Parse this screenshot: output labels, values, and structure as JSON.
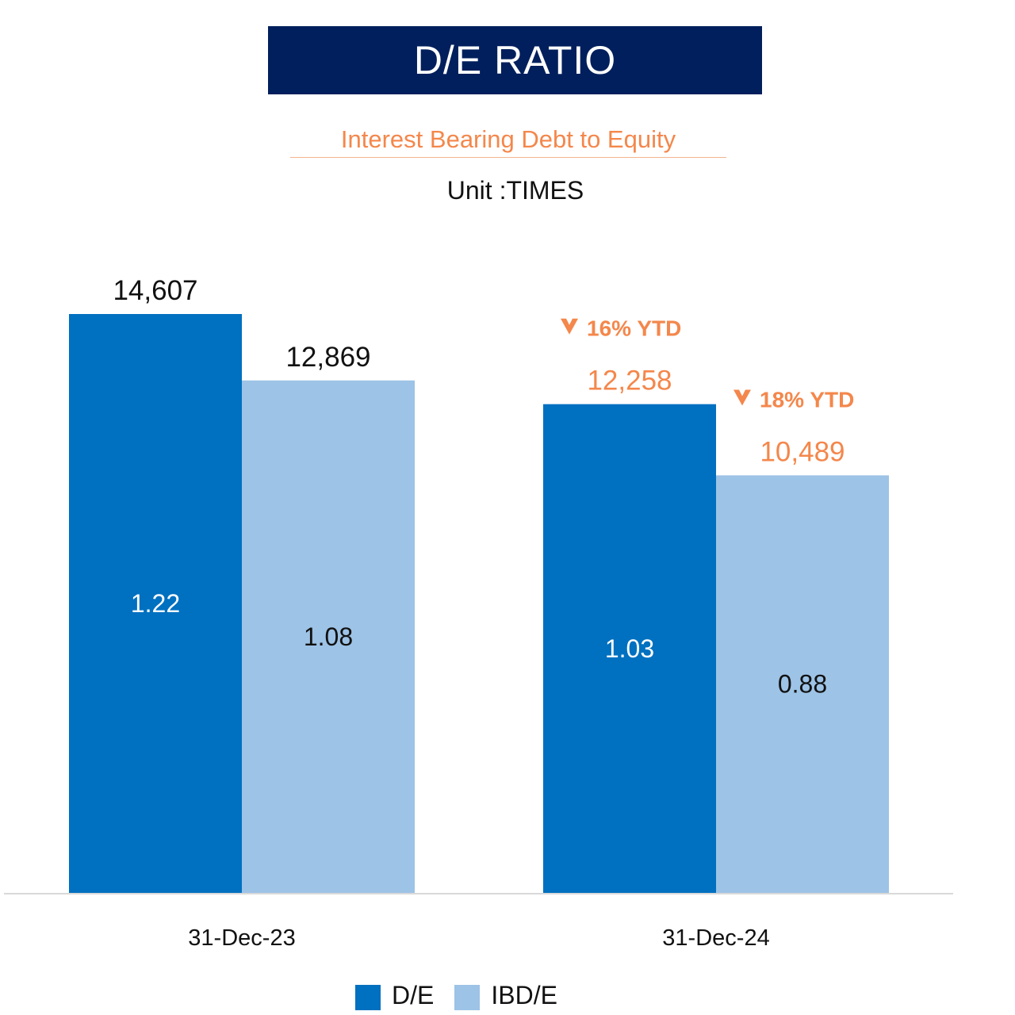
{
  "header": {
    "title": "D/E RATIO",
    "subtitle": "Interest Bearing Debt to Equity",
    "unit": "Unit :TIMES"
  },
  "chart_data": {
    "type": "bar",
    "categories": [
      "31-Dec-23",
      "31-Dec-24"
    ],
    "series": [
      {
        "name": "D/E",
        "values": [
          1.22,
          1.03
        ],
        "value_labels": [
          "1.22",
          "1.03"
        ],
        "color": "#0070c0",
        "label_color": "#ffffff"
      },
      {
        "name": "IBD/E",
        "values": [
          1.08,
          0.88
        ],
        "value_labels": [
          "1.08",
          "0.88"
        ],
        "color": "#9dc3e6",
        "label_color": "#111111"
      }
    ],
    "top_labels": [
      [
        {
          "text": "14,607",
          "highlight": false
        },
        {
          "text": "12,869",
          "highlight": false
        }
      ],
      [
        {
          "text": "12,258",
          "highlight": true,
          "change": "16% YTD"
        },
        {
          "text": "10,489",
          "highlight": true,
          "change": "18% YTD"
        }
      ]
    ],
    "highlight_color": "#f4874b",
    "ylim": [
      0,
      1.22
    ],
    "legend": [
      "D/E",
      "IBD/E"
    ],
    "legend_position": "bottom",
    "grid": false
  }
}
